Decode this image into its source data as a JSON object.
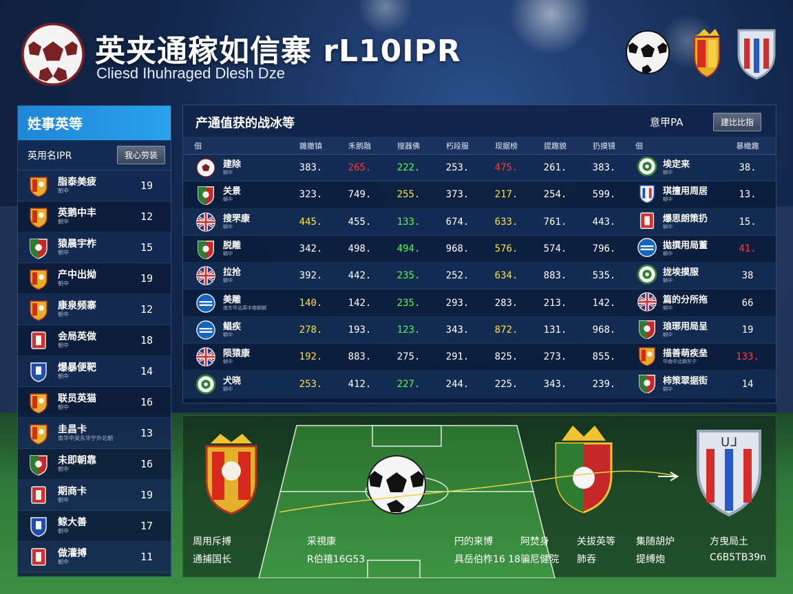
{
  "header": {
    "title": "英夹通稼如信寨 rL10IPR",
    "subtitle": "Cliesd Ihuhraged Dlesh Dze"
  },
  "left_panel": {
    "title": "姓事英等",
    "sub_label": "英用名IPR",
    "button": "我心劳装",
    "items": [
      {
        "name": "脂泰美疲",
        "sub": "朝中",
        "value": "19",
        "crest": "spain-crest"
      },
      {
        "name": "英鹅中丰",
        "sub": "朝中",
        "value": "12",
        "crest": "spain-crest"
      },
      {
        "name": "猿晨宇柞",
        "sub": "朝中",
        "value": "15",
        "crest": "italy-crest"
      },
      {
        "name": "产中出拗",
        "sub": "朝中",
        "value": "19",
        "crest": "spain-crest"
      },
      {
        "name": "康泉频寨",
        "sub": "朝中",
        "value": "12",
        "crest": "spain-crest"
      },
      {
        "name": "会局英做",
        "sub": "朝中",
        "value": "18",
        "crest": "red-crest"
      },
      {
        "name": "爆暴便靶",
        "sub": "朝中",
        "value": "14",
        "crest": "blue-crest"
      },
      {
        "name": "联员英猫",
        "sub": "朝中",
        "value": "16",
        "crest": "spain-crest"
      },
      {
        "name": "圭昌卡",
        "sub": "南华中英东华宁外北朝",
        "value": "13",
        "crest": "spain-crest"
      },
      {
        "name": "未即朝靠",
        "sub": "朝中",
        "value": "16",
        "crest": "italy-crest"
      },
      {
        "name": "期商卡",
        "sub": "朝中",
        "value": "19",
        "crest": "red-crest"
      },
      {
        "name": "鲸大善",
        "sub": "朝中",
        "value": "17",
        "crest": "blue-crest"
      },
      {
        "name": "做灌搏",
        "sub": "朝中",
        "value": "11",
        "crest": "red-crest"
      }
    ]
  },
  "table": {
    "title": "产通值获的战冰等",
    "label": "意甲PA",
    "button": "建比比指",
    "headers": [
      "佃",
      "雜撤镇",
      "禾鹅融",
      "搜器佛",
      "朽段服",
      "现据榜",
      "提趣貌",
      "扔摸镜",
      "佃",
      "暴橄趣"
    ],
    "rows": [
      {
        "team": "建除",
        "team_sub": "朝中",
        "crest": "ball-crest",
        "v": [
          "383.",
          "265.",
          "222.",
          "253.",
          "475.",
          "261.",
          "383."
        ],
        "colors": [
          "",
          "red",
          "grn",
          "",
          "red",
          "",
          ""
        ],
        "op": "埃定来",
        "op_sub": "朝中",
        "op_crest": "green-ring",
        "last": "38.",
        "last_color": ""
      },
      {
        "team": "关景",
        "team_sub": "朝中",
        "crest": "italy-crest",
        "v": [
          "323.",
          "749.",
          "255.",
          "373.",
          "217.",
          "254.",
          "599."
        ],
        "colors": [
          "",
          "",
          "yel",
          "",
          "yel",
          "",
          ""
        ],
        "op": "琪擅用周居",
        "op_sub": "朝中",
        "op_crest": "blue-red-crest",
        "last": "13.",
        "last_color": ""
      },
      {
        "team": "搜罘康",
        "team_sub": "朝中",
        "crest": "uk-flag",
        "v": [
          "445.",
          "455.",
          "133.",
          "674.",
          "633.",
          "761.",
          "443."
        ],
        "colors": [
          "yel",
          "",
          "grn",
          "",
          "yel",
          "",
          ""
        ],
        "op": "爆思朗策扔",
        "op_sub": "朝中",
        "op_crest": "red-crest",
        "last": "15.",
        "last_color": ""
      },
      {
        "team": "脱雕",
        "team_sub": "朝中",
        "crest": "italy-crest",
        "v": [
          "342.",
          "498.",
          "494.",
          "968.",
          "576.",
          "574.",
          "796."
        ],
        "colors": [
          "",
          "",
          "grn",
          "",
          "yel",
          "",
          ""
        ],
        "op": "拋撰用局董",
        "op_sub": "朝中",
        "op_crest": "blue-ring",
        "last": "41.",
        "last_color": "red"
      },
      {
        "team": "拉抢",
        "team_sub": "朝中",
        "crest": "uk-flag",
        "v": [
          "392.",
          "442.",
          "235.",
          "252.",
          "634.",
          "883.",
          "535."
        ],
        "colors": [
          "",
          "",
          "grn",
          "",
          "yel",
          "",
          ""
        ],
        "op": "拢埃摸服",
        "op_sub": "朝中",
        "op_crest": "green-ring",
        "last": "38",
        "last_color": ""
      },
      {
        "team": "美雕",
        "team_sub": "南东华北英中南朝朝",
        "crest": "blue-ring",
        "v": [
          "140.",
          "142.",
          "235.",
          "293.",
          "283.",
          "213.",
          "142."
        ],
        "colors": [
          "yel",
          "",
          "grn",
          "",
          "",
          "",
          ""
        ],
        "op": "篇的分所拖",
        "op_sub": "朝中",
        "op_crest": "uk-flag",
        "last": "66",
        "last_color": ""
      },
      {
        "team": "鲳疾",
        "team_sub": "朝中",
        "crest": "blue-ring",
        "v": [
          "278.",
          "193.",
          "123.",
          "343.",
          "872.",
          "131.",
          "968."
        ],
        "colors": [
          "yel",
          "",
          "grn",
          "",
          "yel",
          "",
          ""
        ],
        "op": "琅琊用局呈",
        "op_sub": "朝中",
        "op_crest": "italy-crest",
        "last": "19",
        "last_color": ""
      },
      {
        "team": "陨猿康",
        "team_sub": "朝中",
        "crest": "uk-flag",
        "v": [
          "192.",
          "883.",
          "275.",
          "291.",
          "825.",
          "273.",
          "855."
        ],
        "colors": [
          "yel",
          "",
          "",
          "",
          "",
          "",
          ""
        ],
        "op": "描善萌疾垒",
        "op_sub": "华南中北朝东宁",
        "op_crest": "spain-crest",
        "last": "133.",
        "last_color": "red"
      },
      {
        "team": "犬晓",
        "team_sub": "朝中",
        "crest": "green-ring",
        "v": [
          "253.",
          "412.",
          "227.",
          "244.",
          "225.",
          "343.",
          "239."
        ],
        "colors": [
          "yel",
          "",
          "grn",
          "",
          "",
          "",
          ""
        ],
        "op": "柿策翠据街",
        "op_sub": "朝中",
        "op_crest": "italy-crest",
        "last": "14",
        "last_color": ""
      }
    ]
  },
  "pitch_stats": {
    "labels_row1": [
      "周用斥搏",
      "采視康",
      "円的来博",
      "阿焚身",
      "关拔英等",
      "集随胡炉",
      "方曳局土"
    ],
    "labels_row2": [
      "通捕国长",
      "R伯禧16G53",
      "具岳伯柞16 18",
      "骗尼健院",
      "肺吞",
      "提缚炮",
      "C6B5TB39n"
    ]
  },
  "colors": {
    "accent_blue": "#1f86d6",
    "value_red": "#ff3b3b",
    "value_yellow": "#ffe23a",
    "value_green": "#4dff4d"
  }
}
